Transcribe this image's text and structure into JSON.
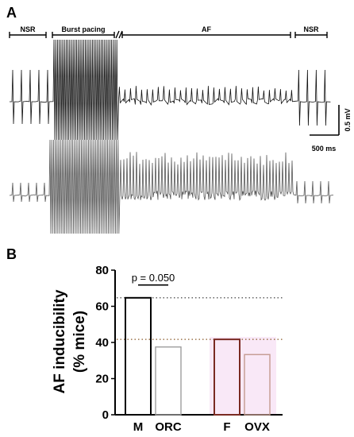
{
  "panels": {
    "a": {
      "label": "A",
      "segments": [
        "NSR",
        "Burst pacing",
        "AF",
        "NSR"
      ],
      "scale_bar": {
        "voltage": "0.5 mV",
        "time": "500 ms"
      }
    },
    "b": {
      "label": "B"
    }
  },
  "colors": {
    "trace": "#111111",
    "trace_gray": "#555555",
    "M": "#000000",
    "ORC": "#9e9e9e",
    "F": "#7a2a22",
    "OVX": "#c49a90",
    "male_ref": "#333333",
    "female_ref": "#8a5a2a",
    "pink_band": "#f4d6f0"
  },
  "chart_data": {
    "type": "bar",
    "categories": [
      "M",
      "ORC",
      "F",
      "OVX"
    ],
    "values": [
      64.7,
      37.5,
      41.7,
      33.3
    ],
    "ylabel_lines": [
      "AF inducibility",
      "(% mice)"
    ],
    "ylim": [
      0,
      80
    ],
    "yticks": [
      0,
      20,
      40,
      60,
      80
    ],
    "reference_lines": [
      64.7,
      41.7
    ],
    "annotation": {
      "text": "p = 0.050",
      "between": [
        "M",
        "ORC"
      ]
    },
    "grid": false,
    "legend": "none"
  }
}
